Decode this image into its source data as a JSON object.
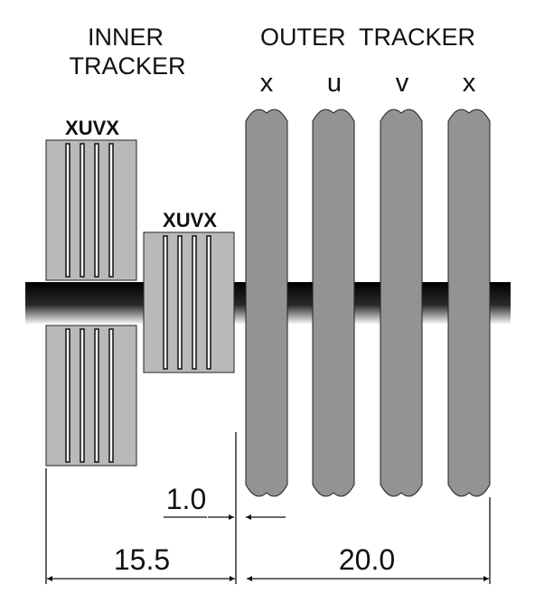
{
  "headings": {
    "inner_line1": "INNER",
    "inner_line2": "TRACKER",
    "outer": "OUTER  TRACKER"
  },
  "outer_planes": [
    "x",
    "u",
    "v",
    "x"
  ],
  "inner_stations": [
    {
      "label": "XUVX"
    },
    {
      "label": "XUVX"
    }
  ],
  "dimensions": {
    "gap": "1.0",
    "inner_span": "15.5",
    "outer_span": "20.0"
  },
  "colors": {
    "module_fill": "#b9b9b9",
    "outer_plane_fill": "#939393",
    "beam_pipe_dark": "#000000",
    "beam_pipe_light": "#f4f4f4",
    "line": "#111111"
  }
}
